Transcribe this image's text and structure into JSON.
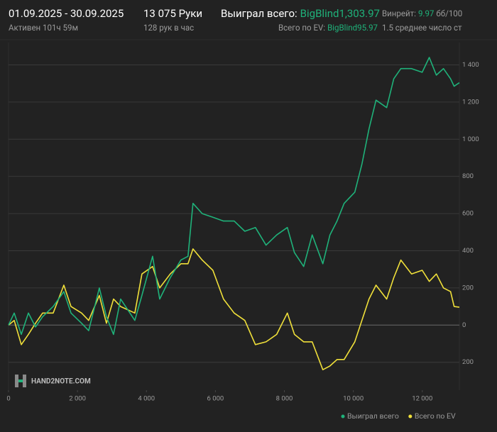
{
  "header": {
    "period": "01.09.2025 - 30.09.2025",
    "active": "Активен 101ч 59м",
    "hands": "13 075 Руки",
    "hands_per_hour": "128 рук в час",
    "won_label": "Выиграл всего:",
    "won_value": "BigBlind1,303.97",
    "ev_label": "Всего по EV:",
    "ev_value": "BigBlind95.97",
    "winrate_label": "Винрейт:",
    "winrate_value": "9.97",
    "winrate_unit": "бб/100",
    "avg_tables": "1.5 среднее число ст"
  },
  "watermark": "HAND2NOTE.COM",
  "chart_data": {
    "type": "line",
    "x": [
      0,
      165,
      370,
      576,
      782,
      988,
      1296,
      1605,
      1811,
      2119,
      2325,
      2634,
      2840,
      3045,
      3251,
      3663,
      3868,
      4177,
      4383,
      4691,
      5000,
      5206,
      5350,
      5617,
      5926,
      6235,
      6543,
      6852,
      7160,
      7469,
      7778,
      8086,
      8292,
      8560,
      8807,
      9115,
      9321,
      9527,
      9733,
      10041,
      10247,
      10453,
      10658,
      10967,
      11173,
      11379,
      11687,
      11996,
      12202,
      12407,
      12613,
      12819,
      12922,
      13075
    ],
    "series": [
      {
        "name": "Выиграл всего",
        "color": "#1fb27a",
        "values": [
          0,
          65,
          -50,
          65,
          -10,
          45,
          100,
          180,
          65,
          10,
          -30,
          200,
          45,
          -50,
          140,
          25,
          160,
          370,
          140,
          255,
          350,
          370,
          655,
          600,
          580,
          560,
          560,
          505,
          525,
          430,
          485,
          525,
          390,
          315,
          485,
          330,
          485,
          560,
          655,
          715,
          865,
          1055,
          1210,
          1170,
          1325,
          1380,
          1380,
          1360,
          1440,
          1345,
          1380,
          1325,
          1285,
          1304
        ]
      },
      {
        "name": "Всего по EV",
        "color": "#f0e03a",
        "values": [
          0,
          25,
          -105,
          -50,
          10,
          65,
          65,
          215,
          100,
          65,
          25,
          160,
          10,
          140,
          100,
          65,
          275,
          315,
          200,
          275,
          330,
          330,
          410,
          350,
          295,
          140,
          65,
          25,
          -105,
          -90,
          -50,
          65,
          -50,
          -90,
          -90,
          -240,
          -220,
          -185,
          -185,
          -90,
          25,
          140,
          215,
          140,
          255,
          350,
          275,
          295,
          235,
          275,
          200,
          180,
          100,
          96
        ]
      }
    ],
    "xlim": [
      0,
      13075
    ],
    "xticks": [
      0,
      {
        "value": 2000,
        "label": "2 000"
      },
      {
        "value": 4000,
        "label": "4 000"
      },
      {
        "value": 6000,
        "label": "6 000"
      },
      {
        "value": 8000,
        "label": "8 000"
      },
      {
        "value": 10000,
        "label": "10 000"
      },
      {
        "value": 12000,
        "label": "12 000"
      }
    ],
    "ylim": [
      -350,
      1520
    ],
    "yticks": [
      {
        "value": -200,
        "label": "200"
      },
      0,
      200,
      400,
      600,
      800,
      {
        "value": 1000,
        "label": "1 000"
      },
      {
        "value": 1200,
        "label": "1 200"
      },
      {
        "value": 1400,
        "label": "1 400"
      }
    ],
    "grid": true,
    "legend": "bottom-right"
  }
}
